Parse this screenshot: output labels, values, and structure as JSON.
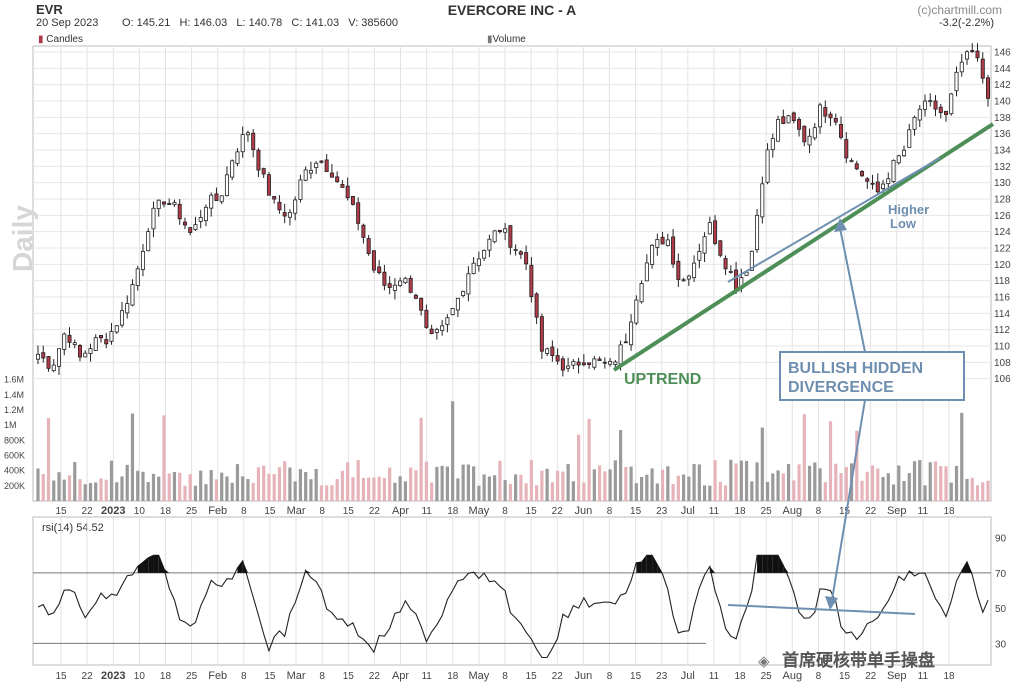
{
  "header": {
    "ticker": "EVR",
    "title": "EVERCORE INC - A",
    "watermark": "(c)chartmill.com",
    "date": "20 Sep 2023",
    "ohlcv": "O: 145.21   H: 146.03   L: 140.78   C: 141.03   V: 385600",
    "change": "-3.2(-2.2%)",
    "period": "Daily",
    "candles_label": "Candles",
    "volume_label": "Volume",
    "rsi_label": "rsi(14) 54.52",
    "footer_brand": "首席硬核带单手操盘"
  },
  "annotations": {
    "uptrend": "UPTREND",
    "higher_low": [
      "Higher",
      "Low"
    ],
    "divergence": [
      "BULLISH HIDDEN",
      "DIVERGENCE"
    ]
  },
  "colors": {
    "up": "#ffffff",
    "down": "#b03a48",
    "trend": "#4e8f57",
    "annot": "#6f8fb0",
    "vol_up": "#9a9a9a",
    "vol_down": "#e6b3b8",
    "rsi_line": "#222222"
  },
  "chart_data": [
    {
      "type": "candlestick",
      "ylim": [
        104,
        146
      ],
      "yticks": [
        106,
        108,
        110,
        112,
        114,
        116,
        118,
        120,
        122,
        124,
        126,
        128,
        130,
        132,
        134,
        136,
        138,
        140,
        142,
        144,
        146
      ],
      "xticks": [
        "15",
        "22",
        "2023",
        "10",
        "18",
        "25",
        "Feb",
        "8",
        "15",
        "Mar",
        "8",
        "15",
        "22",
        "Apr",
        "11",
        "18",
        "May",
        "8",
        "15",
        "22",
        "Jun",
        "8",
        "15",
        "23",
        "Jul",
        "11",
        "18",
        "25",
        "Aug",
        "8",
        "15",
        "22",
        "Sep",
        "11",
        "18"
      ],
      "grid": true,
      "close_series_approx": [
        109,
        107.5,
        112,
        108.5,
        110.5,
        111,
        114,
        118.5,
        125.5,
        128,
        126.5,
        123.5,
        127.5,
        128,
        133.5,
        136.5,
        131,
        127,
        126,
        131,
        133,
        131.5,
        128.5,
        125,
        119.5,
        117,
        118.5,
        116.5,
        110.5,
        112,
        115.5,
        120,
        122,
        124.5,
        122.5,
        120,
        109.5,
        108.5,
        107,
        108.5,
        108,
        107.5,
        110.5,
        117.5,
        122,
        123.5,
        117.5,
        120.5,
        125,
        121,
        117.5,
        120.5,
        132.5,
        137.5,
        137.5,
        135,
        139,
        138.5,
        133,
        131,
        128.5,
        131.5,
        134,
        139,
        139.5,
        138,
        144.5,
        146,
        141
      ]
    },
    {
      "type": "bar",
      "ylim": [
        0,
        1700000
      ],
      "yticks": [
        "200K",
        "400K",
        "600K",
        "800K",
        "1M",
        "1.2M",
        "1.4M",
        "1.6M"
      ],
      "series_note": "daily volume, shaded by candle direction"
    },
    {
      "type": "line",
      "ylim": [
        20,
        100
      ],
      "yticks": [
        30,
        50,
        70,
        90
      ],
      "reference_lines": [
        70,
        30
      ],
      "last_value": 54.52
    }
  ]
}
